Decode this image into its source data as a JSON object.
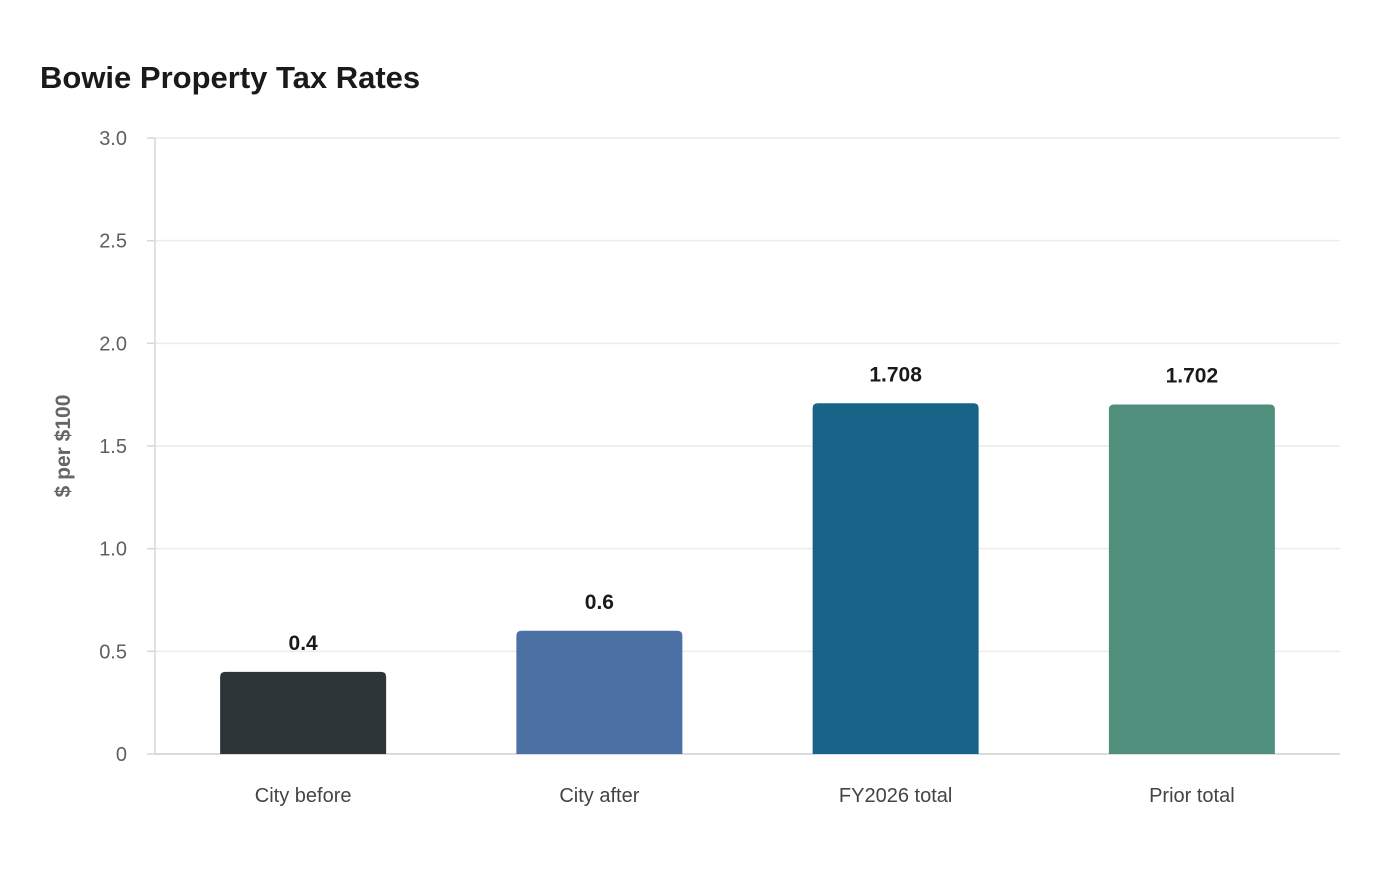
{
  "chart_data": {
    "type": "bar",
    "title": "Bowie Property Tax Rates",
    "xlabel": "",
    "ylabel": "$ per $100",
    "ylim": [
      0,
      3.0
    ],
    "y_ticks": [
      "0",
      "0.5",
      "1.0",
      "1.5",
      "2.0",
      "2.5",
      "3.0"
    ],
    "grid": true,
    "categories": [
      "City before",
      "City after",
      "FY2026 total",
      "Prior total"
    ],
    "values": [
      0.4,
      0.6,
      1.708,
      1.702
    ],
    "value_labels": [
      "0.4",
      "0.6",
      "1.708",
      "1.702"
    ],
    "colors": [
      "#2d3538",
      "#4b70a4",
      "#186388",
      "#4f8f7c"
    ]
  }
}
